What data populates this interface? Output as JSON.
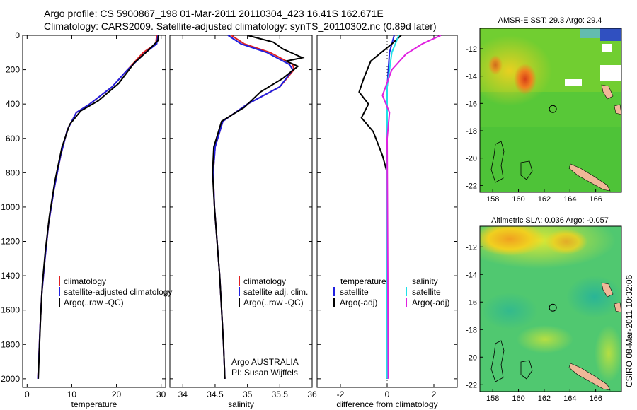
{
  "header": {
    "line1": "Argo profile: CS 5900867_198 01-Mar-2011 20110304_423 16.41S 162.671E",
    "line2": "Climatology: CARS2009. Satellite-adjusted climatology: synTS_20110302.nc (0.89d later)"
  },
  "footer": {
    "credit": "CSIRO 08-Mar-2011 10:32:06",
    "argo_label": "Argo AUSTRALIA",
    "pi_label": "PI: Susan Wijffels"
  },
  "colors": {
    "climatology": "#e02020",
    "satellite": "#2020e0",
    "argo": "#000000",
    "sal_satellite": "#20e0e8",
    "sal_argo": "#e020e0",
    "land": "#f0b898"
  },
  "chart_data": [
    {
      "type": "line",
      "name": "temperature-profile",
      "xlabel": "temperature",
      "ylabel": "",
      "xlim": [
        -1,
        31
      ],
      "ylim": [
        2050,
        0
      ],
      "xticks": [
        "0",
        "10",
        "20",
        "30"
      ],
      "xtick_values": [
        0,
        10,
        20,
        30
      ],
      "yticks": [
        "0",
        "200",
        "400",
        "600",
        "800",
        "1000",
        "1200",
        "1400",
        "1600",
        "1800",
        "2000"
      ],
      "ytick_values": [
        0,
        200,
        400,
        600,
        800,
        1000,
        1200,
        1400,
        1600,
        1800,
        2000
      ],
      "legend": [
        "climatology",
        "satellite-adjusted climatology",
        "Argo(..raw -QC)"
      ],
      "series": [
        {
          "name": "climatology",
          "color": "#e02020",
          "points": [
            [
              29.0,
              0
            ],
            [
              28.8,
              50
            ],
            [
              26.0,
              100
            ],
            [
              22.5,
              200
            ],
            [
              19.0,
              300
            ],
            [
              14.0,
              400
            ],
            [
              11.0,
              450
            ],
            [
              9.0,
              550
            ],
            [
              7.5,
              700
            ],
            [
              6.0,
              900
            ],
            [
              4.8,
              1100
            ],
            [
              4.0,
              1300
            ],
            [
              3.3,
              1500
            ],
            [
              2.9,
              1700
            ],
            [
              2.6,
              1900
            ],
            [
              2.4,
              2000
            ]
          ]
        },
        {
          "name": "satellite-adjusted climatology",
          "color": "#2020e0",
          "points": [
            [
              29.3,
              0
            ],
            [
              29.0,
              50
            ],
            [
              26.5,
              100
            ],
            [
              22.5,
              200
            ],
            [
              19.0,
              300
            ],
            [
              14.0,
              400
            ],
            [
              11.0,
              450
            ],
            [
              9.0,
              550
            ],
            [
              7.5,
              700
            ],
            [
              6.0,
              900
            ],
            [
              4.8,
              1100
            ],
            [
              4.0,
              1300
            ],
            [
              3.3,
              1500
            ],
            [
              2.9,
              1700
            ],
            [
              2.6,
              1900
            ],
            [
              2.4,
              2000
            ]
          ]
        },
        {
          "name": "Argo(..raw -QC)",
          "color": "#000000",
          "points": [
            [
              29.4,
              0
            ],
            [
              29.3,
              30
            ],
            [
              27.0,
              90
            ],
            [
              24.0,
              160
            ],
            [
              20.5,
              280
            ],
            [
              16.0,
              380
            ],
            [
              12.0,
              440
            ],
            [
              9.5,
              520
            ],
            [
              7.8,
              650
            ],
            [
              6.2,
              850
            ],
            [
              5.0,
              1050
            ],
            [
              4.1,
              1250
            ],
            [
              3.4,
              1450
            ],
            [
              3.0,
              1650
            ],
            [
              2.7,
              1850
            ],
            [
              2.5,
              2000
            ]
          ]
        }
      ]
    },
    {
      "type": "line",
      "name": "salinity-profile",
      "xlabel": "salinity",
      "xlim": [
        33.8,
        36.0
      ],
      "ylim": [
        2050,
        0
      ],
      "xticks": [
        "34",
        "34.5",
        "35",
        "35.5",
        "36"
      ],
      "xtick_values": [
        34,
        34.5,
        35,
        35.5,
        36
      ],
      "legend": [
        "climatology",
        "satellite adj. clim.",
        "Argo(..raw -QC)"
      ],
      "series": [
        {
          "name": "climatology",
          "color": "#e02020",
          "points": [
            [
              34.75,
              0
            ],
            [
              34.95,
              50
            ],
            [
              35.35,
              100
            ],
            [
              35.7,
              170
            ],
            [
              35.72,
              200
            ],
            [
              35.5,
              300
            ],
            [
              35.0,
              400
            ],
            [
              34.62,
              500
            ],
            [
              34.5,
              650
            ],
            [
              34.47,
              800
            ],
            [
              34.49,
              1000
            ],
            [
              34.53,
              1200
            ],
            [
              34.57,
              1400
            ],
            [
              34.6,
              1600
            ],
            [
              34.63,
              1800
            ],
            [
              34.65,
              2000
            ]
          ]
        },
        {
          "name": "satellite adj. clim.",
          "color": "#2020e0",
          "points": [
            [
              34.7,
              0
            ],
            [
              34.9,
              50
            ],
            [
              35.3,
              100
            ],
            [
              35.65,
              170
            ],
            [
              35.7,
              200
            ],
            [
              35.5,
              300
            ],
            [
              35.0,
              400
            ],
            [
              34.62,
              500
            ],
            [
              34.5,
              650
            ],
            [
              34.47,
              800
            ],
            [
              34.49,
              1000
            ],
            [
              34.53,
              1200
            ],
            [
              34.57,
              1400
            ],
            [
              34.6,
              1600
            ],
            [
              34.63,
              1800
            ],
            [
              34.65,
              2000
            ]
          ]
        },
        {
          "name": "Argo(..raw -QC)",
          "color": "#000000",
          "points": [
            [
              35.0,
              0
            ],
            [
              35.4,
              40
            ],
            [
              35.55,
              80
            ],
            [
              35.85,
              130
            ],
            [
              35.6,
              150
            ],
            [
              35.78,
              180
            ],
            [
              35.55,
              250
            ],
            [
              35.2,
              330
            ],
            [
              34.95,
              420
            ],
            [
              34.6,
              500
            ],
            [
              34.48,
              650
            ],
            [
              34.46,
              800
            ],
            [
              34.49,
              1000
            ],
            [
              34.53,
              1200
            ],
            [
              34.57,
              1400
            ],
            [
              34.6,
              1600
            ],
            [
              34.63,
              1800
            ],
            [
              34.65,
              2000
            ]
          ]
        }
      ]
    },
    {
      "type": "line",
      "name": "difference-profile",
      "xlabel": "difference from climatology",
      "xlim": [
        -3,
        3
      ],
      "ylim": [
        2050,
        0
      ],
      "xticks": [
        "-2",
        "0",
        "2"
      ],
      "xtick_values": [
        -2,
        0,
        2
      ],
      "legend_temperature_title": "temperature",
      "legend_salinity_title": "salinity",
      "legend": [
        "satellite",
        "Argo(-adj)",
        "satellite",
        "Argo(-adj)"
      ],
      "series": [
        {
          "name": "temperature satellite",
          "color": "#2020e0",
          "points": [
            [
              0.3,
              0
            ],
            [
              0.1,
              100
            ],
            [
              0.0,
              300
            ],
            [
              0.0,
              2000
            ]
          ]
        },
        {
          "name": "temperature Argo(-adj)",
          "color": "#000000",
          "points": [
            [
              0.6,
              0
            ],
            [
              0.2,
              50
            ],
            [
              -0.7,
              150
            ],
            [
              -1.0,
              250
            ],
            [
              -1.2,
              330
            ],
            [
              -0.8,
              400
            ],
            [
              -1.1,
              480
            ],
            [
              -0.6,
              560
            ],
            [
              -0.2,
              700
            ],
            [
              0.0,
              800
            ],
            [
              0.0,
              2000
            ]
          ]
        },
        {
          "name": "salinity satellite",
          "color": "#20e0e8",
          "points": [
            [
              0.5,
              0
            ],
            [
              0.2,
              100
            ],
            [
              0.0,
              300
            ],
            [
              0.0,
              2000
            ]
          ]
        },
        {
          "name": "salinity Argo(-adj)",
          "color": "#e020e0",
          "points": [
            [
              2.3,
              0
            ],
            [
              1.5,
              50
            ],
            [
              0.8,
              110
            ],
            [
              0.2,
              200
            ],
            [
              -0.2,
              350
            ],
            [
              0.1,
              450
            ],
            [
              0.0,
              600
            ],
            [
              0.05,
              2000
            ]
          ]
        }
      ]
    },
    {
      "type": "heatmap",
      "name": "sst-map",
      "title": "AMSR-E SST: 29.3 Argo: 29.4",
      "xlim": [
        157,
        168
      ],
      "ylim": [
        -22.5,
        -10.5
      ],
      "xticks": [
        "158",
        "160",
        "162",
        "164",
        "166"
      ],
      "xtick_values": [
        158,
        160,
        162,
        164,
        166
      ],
      "yticks": [
        "-12",
        "-14",
        "-16",
        "-18",
        "-20",
        "-22"
      ],
      "ytick_values": [
        -12,
        -14,
        -16,
        -18,
        -20,
        -22
      ],
      "float_position": [
        162.671,
        -16.41
      ]
    },
    {
      "type": "heatmap",
      "name": "sla-map",
      "title": "Altimetric SLA: 0.036 Argo: -0.057",
      "xlim": [
        157,
        168
      ],
      "ylim": [
        -22.5,
        -10.5
      ],
      "xticks": [
        "158",
        "160",
        "162",
        "164",
        "166"
      ],
      "xtick_values": [
        158,
        160,
        162,
        164,
        166
      ],
      "yticks": [
        "-12",
        "-14",
        "-16",
        "-18",
        "-20",
        "-22"
      ],
      "ytick_values": [
        -12,
        -14,
        -16,
        -18,
        -20,
        -22
      ],
      "float_position": [
        162.671,
        -16.41
      ]
    }
  ]
}
